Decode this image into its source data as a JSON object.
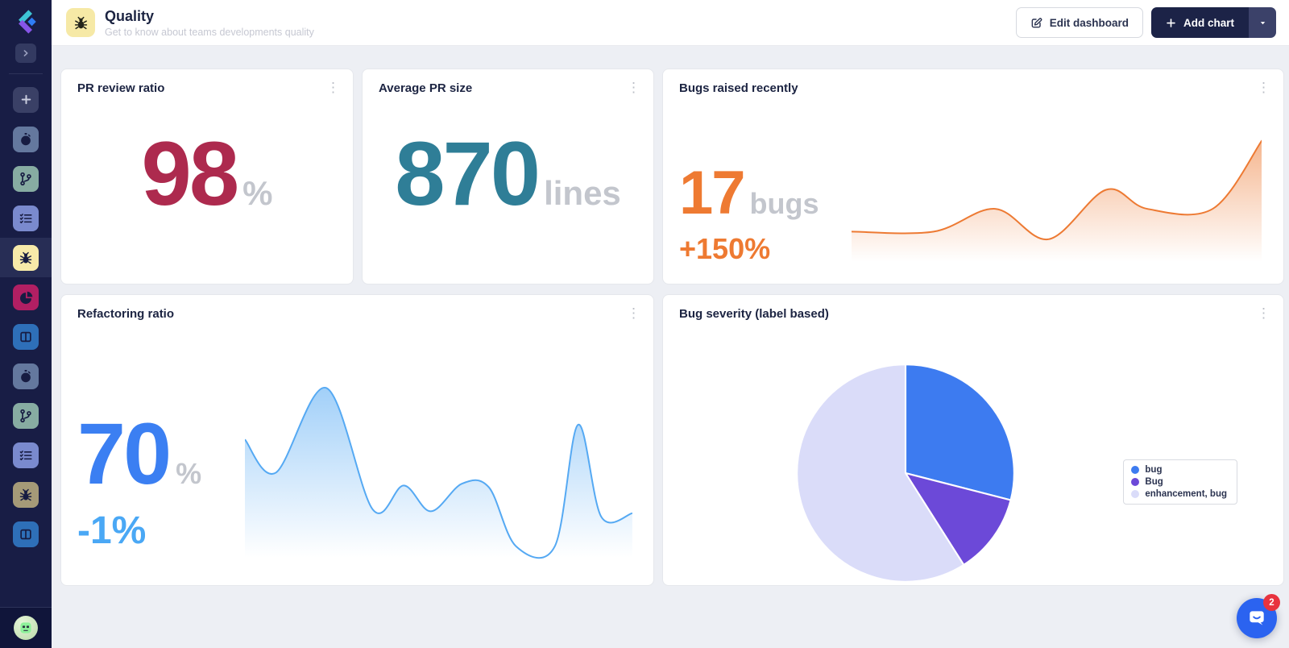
{
  "sidebar": {
    "bg": "#181d45",
    "active_bg": "#272d55",
    "items": [
      {
        "name": "add-dashboard",
        "icon": "plus-icon",
        "color": "#3a4066",
        "active": false
      },
      {
        "name": "velocity-dashboard",
        "icon": "stopwatch-icon",
        "color": "#64789e",
        "active": false
      },
      {
        "name": "git-dashboard",
        "icon": "git-branch-icon",
        "color": "#87aca2",
        "active": false
      },
      {
        "name": "tasks-dashboard",
        "icon": "checklist-icon",
        "color": "#7a8ace",
        "active": false
      },
      {
        "name": "quality-dashboard",
        "icon": "bug-icon",
        "color": "#f7eaa9",
        "active": true
      },
      {
        "name": "distribution-dashboard",
        "icon": "pie-chart-icon",
        "color": "#b11f63",
        "active": false
      },
      {
        "name": "board-dashboard",
        "icon": "columns-icon",
        "color": "#2e6fb8",
        "active": false
      },
      {
        "name": "velocity-dashboard-2",
        "icon": "stopwatch-icon",
        "color": "#64789e",
        "active": false
      },
      {
        "name": "git-dashboard-2",
        "icon": "git-branch-icon",
        "color": "#87aca2",
        "active": false
      },
      {
        "name": "tasks-dashboard-2",
        "icon": "checklist-icon",
        "color": "#7a8ace",
        "active": false
      },
      {
        "name": "quality-dashboard-2",
        "icon": "bug-icon",
        "color": "#a59a78",
        "active": false
      },
      {
        "name": "board-dashboard-2",
        "icon": "columns-icon",
        "color": "#2e6fb8",
        "active": false
      }
    ]
  },
  "header": {
    "icon": "bug-icon",
    "icon_bg": "#f6e9a6",
    "title": "Quality",
    "subtitle": "Get to know about teams developments quality",
    "edit_label": "Edit dashboard",
    "add_label": "Add chart"
  },
  "cards": [
    {
      "title": "PR review ratio",
      "value": "98",
      "unit": "%",
      "value_color": "#ad2a4e"
    },
    {
      "title": "Average PR size",
      "value": "870",
      "unit": "lines",
      "value_color": "#2f7e97"
    },
    {
      "title": "Bugs raised recently",
      "value": "17",
      "unit": "bugs",
      "delta": "+150%",
      "value_color": "#ee7a32",
      "delta_color": "#ee7a32"
    },
    {
      "title": "Refactoring ratio",
      "value": "70",
      "unit": "%",
      "delta": "-1%",
      "value_color": "#3b7ff2",
      "delta_color": "#4aa8f5"
    },
    {
      "title": "Bug severity (label based)"
    }
  ],
  "chart_data": [
    {
      "type": "area",
      "title": "Bugs raised recently",
      "x": [
        0,
        20,
        35,
        48,
        62,
        72,
        88,
        100
      ],
      "values": [
        5,
        5,
        8,
        4,
        10.5,
        8,
        8,
        17
      ],
      "ylim": [
        0,
        17.5
      ],
      "ylabel": "bugs",
      "color": "#ed7a33",
      "grid": false,
      "current_value": 17,
      "delta": "+150%"
    },
    {
      "type": "area",
      "title": "Refactoring ratio",
      "x": [
        0,
        8,
        21,
        33,
        41,
        48,
        56,
        63,
        70,
        80,
        86,
        92,
        100
      ],
      "values": [
        70,
        52,
        98,
        32,
        45,
        31,
        46,
        44,
        12,
        12,
        78,
        28,
        30
      ],
      "ylim": [
        0,
        100
      ],
      "ylabel": "%",
      "color": "#55a9f3",
      "grid": false,
      "current_value": 70,
      "delta": "-1%"
    },
    {
      "type": "pie",
      "title": "Bug severity (label based)",
      "labels": [
        "bug",
        "Bug",
        "enhancement, bug"
      ],
      "values": [
        29,
        12,
        59
      ],
      "colors": [
        "#3d7bf0",
        "#6c49d8",
        "#dadcf9"
      ],
      "legend_position": "right"
    }
  ],
  "intercom": {
    "badge": "2",
    "color": "#2b63f0",
    "badge_color": "#e8333e"
  }
}
